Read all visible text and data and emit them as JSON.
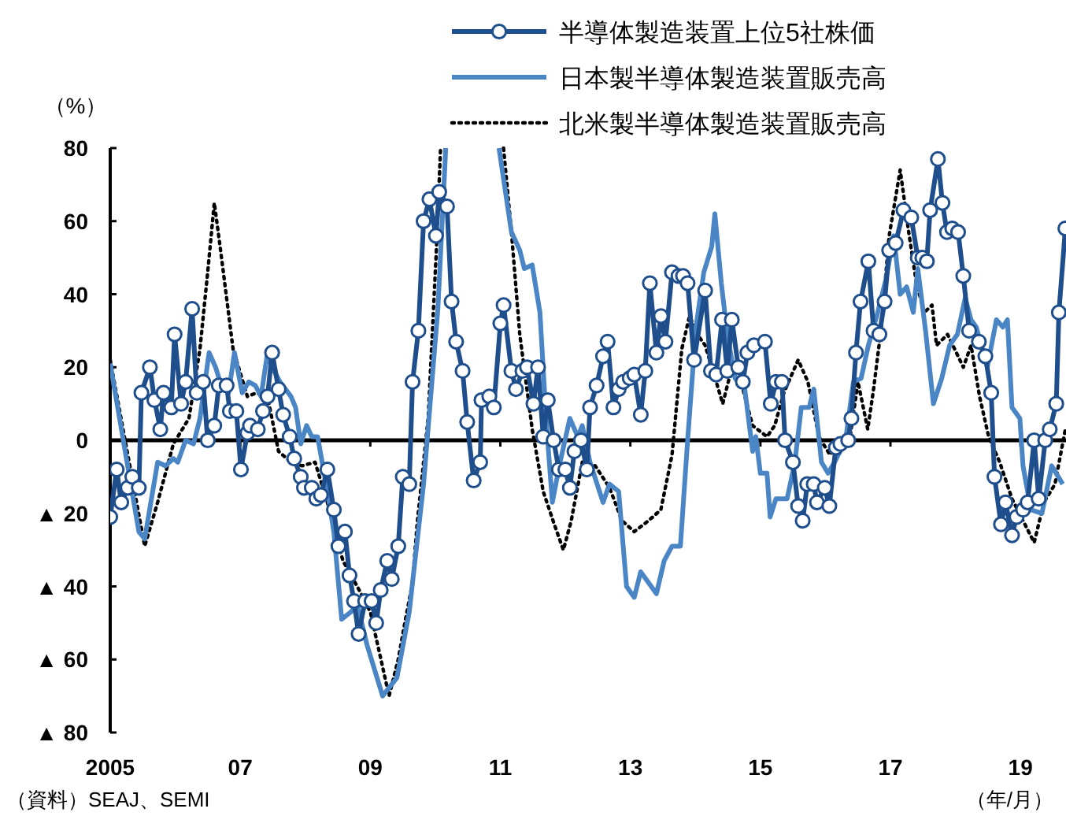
{
  "chart_data": {
    "type": "line",
    "xlabel": "（年/月）",
    "ylabel": "（%）",
    "xlim": [
      2005,
      2019.7
    ],
    "ylim": [
      -80,
      80
    ],
    "xticks": [
      2005,
      {
        "value": 2007,
        "label": "07"
      },
      {
        "value": 2009,
        "label": "09"
      },
      {
        "value": 2011,
        "label": "11"
      },
      {
        "value": 2013,
        "label": "13"
      },
      {
        "value": 2015,
        "label": "15"
      },
      {
        "value": 2017,
        "label": "17"
      },
      {
        "value": 2019,
        "label": "19"
      }
    ],
    "yticks": [
      80,
      60,
      40,
      20,
      0,
      {
        "value": -20,
        "label": "▲ 20"
      },
      {
        "value": -40,
        "label": "▲ 40"
      },
      {
        "value": -60,
        "label": "▲ 60"
      },
      {
        "value": -80,
        "label": "▲ 80"
      }
    ],
    "grid": false,
    "legend": "top right",
    "ref_lines": [
      {
        "axis": "y",
        "value": 0,
        "color": "#000000",
        "line_style": "solid"
      }
    ],
    "annotations": [
      "（資料）SEAJ、SEMI"
    ],
    "series": [
      {
        "name": "半導体製造装置上位5社株価",
        "color": "#1f4e8c",
        "marker": "circle",
        "line_style": "solid",
        "x": [
          2005.0,
          2005.1,
          2005.17,
          2005.27,
          2005.34,
          2005.44,
          2005.48,
          2005.61,
          2005.68,
          2005.77,
          2005.82,
          2005.94,
          2005.99,
          2006.09,
          2006.16,
          2006.26,
          2006.33,
          2006.43,
          2006.5,
          2006.6,
          2006.67,
          2006.79,
          2006.84,
          2006.94,
          2007.01,
          2007.11,
          2007.15,
          2007.27,
          2007.35,
          2007.42,
          2007.49,
          2007.59,
          2007.66,
          2007.76,
          2007.83,
          2007.93,
          2007.98,
          2008.1,
          2008.17,
          2008.24,
          2008.34,
          2008.44,
          2008.51,
          2008.61,
          2008.68,
          2008.75,
          2008.82,
          2008.92,
          2009.02,
          2009.09,
          2009.16,
          2009.26,
          2009.33,
          2009.43,
          2009.5,
          2009.6,
          2009.65,
          2009.74,
          2009.82,
          2009.91,
          2010.01,
          2010.06,
          2010.18,
          2010.25,
          2010.32,
          2010.42,
          2010.49,
          2010.59,
          2010.69,
          2010.71,
          2010.83,
          2010.9,
          2011.0,
          2011.05,
          2011.17,
          2011.24,
          2011.34,
          2011.41,
          2011.51,
          2011.58,
          2011.66,
          2011.73,
          2011.82,
          2011.9,
          2012.0,
          2012.07,
          2012.14,
          2012.24,
          2012.33,
          2012.38,
          2012.48,
          2012.58,
          2012.65,
          2012.74,
          2012.82,
          2012.89,
          2012.99,
          2013.06,
          2013.16,
          2013.23,
          2013.3,
          2013.4,
          2013.47,
          2013.54,
          2013.64,
          2013.74,
          2013.81,
          2013.88,
          2013.98,
          2014.15,
          2014.24,
          2014.32,
          2014.41,
          2014.49,
          2014.56,
          2014.66,
          2014.73,
          2014.8,
          2014.9,
          2015.07,
          2015.16,
          2015.24,
          2015.33,
          2015.38,
          2015.5,
          2015.58,
          2015.65,
          2015.72,
          2015.82,
          2015.87,
          2015.99,
          2016.06,
          2016.16,
          2016.23,
          2016.35,
          2016.4,
          2016.47,
          2016.54,
          2016.66,
          2016.74,
          2016.83,
          2016.91,
          2016.98,
          2017.08,
          2017.2,
          2017.32,
          2017.42,
          2017.49,
          2017.56,
          2017.61,
          2017.73,
          2017.8,
          2017.87,
          2017.95,
          2018.04,
          2018.12,
          2018.21,
          2018.36,
          2018.46,
          2018.55,
          2018.6,
          2018.7,
          2018.77,
          2018.87,
          2018.94,
          2019.04,
          2019.11,
          2019.21,
          2019.28,
          2019.38,
          2019.45,
          2019.55,
          2019.59,
          2019.69
        ],
        "values": [
          -21,
          -8,
          -17,
          -13,
          -10,
          -13,
          13,
          20,
          11,
          3,
          13,
          9,
          29,
          10,
          16,
          36,
          13,
          16,
          0,
          4,
          15,
          15,
          8,
          8,
          -8,
          2,
          4,
          3,
          8,
          12,
          24,
          14,
          7,
          1,
          -5,
          -10,
          -13,
          -13,
          -16,
          -15,
          -8,
          -19,
          -29,
          -25,
          -37,
          -44,
          -53,
          -44,
          -44,
          -50,
          -41,
          -33,
          -38,
          -29,
          -10,
          -12,
          16,
          30,
          60,
          66,
          56,
          68,
          64,
          38,
          27,
          19,
          5,
          -11,
          -6,
          11,
          12,
          9,
          32,
          37,
          19,
          14,
          19,
          20,
          10,
          20,
          1,
          11,
          0,
          -8,
          -8,
          -13,
          -3,
          0,
          -8,
          9,
          15,
          23,
          27,
          9,
          14,
          16,
          17,
          18,
          7,
          19,
          43,
          24,
          34,
          27,
          46,
          45,
          45,
          43,
          22,
          41,
          19,
          18,
          33,
          19,
          33,
          20,
          16,
          24,
          26,
          27,
          10,
          16,
          16,
          0,
          -6,
          -18,
          -22,
          -12,
          -12,
          -17,
          -13,
          -18,
          -2,
          -1,
          0,
          6,
          24,
          38,
          49,
          30,
          29,
          38,
          52,
          54,
          63,
          61,
          50,
          50,
          49,
          63,
          77,
          65,
          57,
          58,
          57,
          45,
          30,
          27,
          23,
          13,
          -10,
          -23,
          -17,
          -26,
          -21,
          -19,
          -17,
          0,
          -16,
          0,
          3,
          10,
          35,
          58
        ]
      },
      {
        "name": "日本製半導体製造装置販売高",
        "color": "#4a86c5",
        "marker": "none",
        "line_style": "solid",
        "x": [
          2005.0,
          2005.44,
          2005.53,
          2005.73,
          2005.85,
          2005.97,
          2006.04,
          2006.16,
          2006.28,
          2006.38,
          2006.52,
          2006.62,
          2006.69,
          2006.82,
          2006.91,
          2007.03,
          2007.13,
          2007.23,
          2007.32,
          2007.42,
          2007.49,
          2007.61,
          2007.78,
          2007.85,
          2007.93,
          2008.02,
          2008.1,
          2008.19,
          2008.32,
          2008.44,
          2008.56,
          2008.7,
          2008.8,
          2008.95,
          2009.19,
          2009.41,
          2009.6,
          2009.82,
          2010.04,
          2010.16,
          2010.5,
          2010.98,
          2011.17,
          2011.3,
          2011.37,
          2011.49,
          2011.61,
          2011.71,
          2011.8,
          2011.92,
          2012.07,
          2012.19,
          2012.26,
          2012.38,
          2012.58,
          2012.68,
          2012.82,
          2012.94,
          2013.06,
          2013.16,
          2013.4,
          2013.52,
          2013.64,
          2013.77,
          2013.88,
          2014.01,
          2014.13,
          2014.25,
          2014.3,
          2014.4,
          2014.49,
          2014.61,
          2014.76,
          2014.88,
          2014.93,
          2015.0,
          2015.1,
          2015.15,
          2015.24,
          2015.41,
          2015.53,
          2015.63,
          2015.75,
          2015.82,
          2015.94,
          2016.04,
          2016.14,
          2016.31,
          2016.43,
          2016.55,
          2016.66,
          2016.79,
          2016.93,
          2017.05,
          2017.15,
          2017.25,
          2017.35,
          2017.42,
          2017.54,
          2017.66,
          2017.79,
          2017.91,
          2018.03,
          2018.15,
          2018.24,
          2018.32,
          2018.49,
          2018.63,
          2018.73,
          2018.8,
          2018.87,
          2018.99,
          2019.04,
          2019.16,
          2019.33,
          2019.48,
          2019.65
        ],
        "values": [
          21,
          -25,
          -27,
          -6,
          -7,
          -5,
          -6,
          0,
          -1,
          6,
          24,
          20,
          16,
          13,
          24,
          13,
          16,
          15,
          12,
          24,
          20,
          16,
          12,
          9,
          -1,
          4,
          1,
          1,
          -12,
          -25,
          -49,
          -47,
          -45,
          -56,
          -70,
          -65,
          -47,
          -12,
          36,
          80,
          null,
          80,
          57,
          52,
          47,
          48,
          35,
          4,
          -17,
          -6,
          6,
          1,
          4,
          -6,
          -17,
          -12,
          -14,
          -40,
          -43,
          -36,
          -42,
          -33,
          -29,
          -29,
          0,
          31,
          46,
          53,
          62,
          43,
          29,
          17,
          14,
          -3,
          1,
          -9,
          -9,
          -21,
          -16,
          -16,
          -6,
          9,
          9,
          14,
          -6,
          -9,
          -6,
          0,
          16,
          17,
          26,
          34,
          44,
          56,
          40,
          42,
          35,
          47,
          30,
          10,
          17,
          26,
          29,
          39,
          33,
          31,
          20,
          33,
          31,
          33,
          9,
          6,
          -7,
          -19,
          -20,
          -7,
          -12
        ]
      },
      {
        "name": "北米製半導体製造装置販売高",
        "color": "#000000",
        "marker": "none",
        "line_style": "dotted",
        "x": [
          2005.0,
          2005.53,
          2005.73,
          2005.97,
          2006.21,
          2006.38,
          2006.5,
          2006.6,
          2006.69,
          2006.89,
          2007.11,
          2007.25,
          2007.42,
          2007.59,
          2007.78,
          2007.95,
          2008.15,
          2008.34,
          2008.58,
          2008.8,
          2009.0,
          2009.29,
          2009.43,
          2009.53,
          2009.65,
          2009.72,
          2009.89,
          2010.01,
          2010.08,
          2010.5,
          2011.05,
          2011.17,
          2011.3,
          2011.49,
          2011.66,
          2011.83,
          2011.97,
          2012.09,
          2012.26,
          2012.46,
          2012.68,
          2012.87,
          2013.06,
          2013.28,
          2013.47,
          2013.64,
          2013.79,
          2013.91,
          2014.03,
          2014.15,
          2014.27,
          2014.42,
          2014.52,
          2014.61,
          2014.73,
          2014.88,
          2015.1,
          2015.22,
          2015.36,
          2015.58,
          2015.73,
          2015.9,
          2016.07,
          2016.21,
          2016.38,
          2016.5,
          2016.65,
          2016.74,
          2016.86,
          2016.98,
          2017.15,
          2017.28,
          2017.4,
          2017.52,
          2017.64,
          2017.71,
          2017.88,
          2018.12,
          2018.24,
          2018.37,
          2018.51,
          2018.68,
          2018.87,
          2019.04,
          2019.21,
          2019.36,
          2019.53,
          2019.69
        ],
        "values": [
          22,
          -29,
          -17,
          -1,
          6,
          25,
          46,
          65,
          53,
          25,
          12,
          13,
          12,
          -3,
          -6,
          -7,
          -6,
          -17,
          -33,
          -40,
          -47,
          -70,
          -60,
          -50,
          -39,
          -23,
          6,
          50,
          80,
          null,
          80,
          57,
          29,
          3,
          -14,
          -23,
          -30,
          -22,
          -6,
          -7,
          -13,
          -22,
          -25,
          -22,
          -19,
          -4,
          25,
          34,
          29,
          26,
          19,
          10,
          17,
          19,
          14,
          4,
          1,
          4,
          13,
          22,
          16,
          1,
          -4,
          0,
          1,
          16,
          3,
          14,
          31,
          56,
          74,
          57,
          43,
          35,
          37,
          26,
          29,
          20,
          26,
          12,
          1,
          -6,
          -16,
          -22,
          -28,
          -17,
          -12,
          3
        ]
      }
    ]
  }
}
